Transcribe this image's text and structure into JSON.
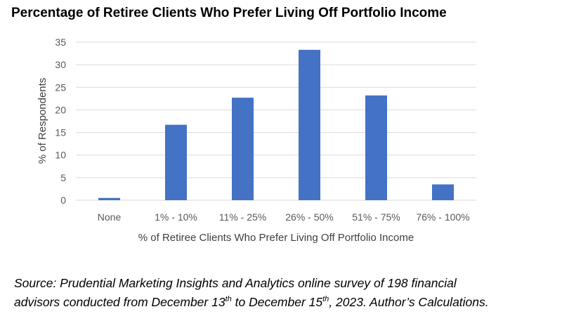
{
  "chart_data": {
    "type": "bar",
    "title": "Percentage of Retiree Clients Who Prefer Living Off Portfolio Income",
    "xlabel": "% of Retiree Clients Who Prefer Living Off Portfolio Income",
    "ylabel": "% of Respondents",
    "categories": [
      "None",
      "1% - 10%",
      "11% - 25%",
      "26% - 50%",
      "51% - 75%",
      "76% - 100%"
    ],
    "values": [
      0.5,
      16.7,
      22.7,
      33.3,
      23.2,
      3.5
    ],
    "ylim": [
      0,
      35
    ],
    "yticks": [
      "0",
      "5",
      "10",
      "15",
      "20",
      "25",
      "30",
      "35"
    ],
    "grid": true,
    "bar_color": "#4472C4",
    "grid_color": "#D9D9D9"
  },
  "source": {
    "line1": "Source: Prudential Marketing Insights and Analytics online survey of 198 financial",
    "line2_a": "advisors conducted from December 13",
    "sup1": "th",
    "line2_b": " to December 15",
    "sup2": "th",
    "line2_c": ", 2023. Author’s Calculations."
  }
}
